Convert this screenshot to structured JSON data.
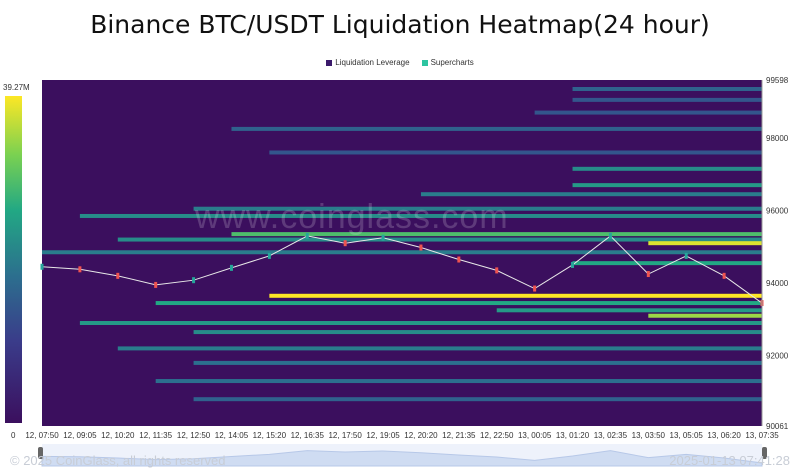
{
  "title": "Binance BTC/USDT Liquidation Heatmap(24 hour)",
  "legend": [
    {
      "label": "Liquidation Leverage",
      "color": "#3b1a6b"
    },
    {
      "label": "Supercharts",
      "color": "#2ec4a0"
    }
  ],
  "colorbar": {
    "max_label": "39.27M",
    "min_label": "0"
  },
  "watermark": "www.coinglass.com",
  "footer": {
    "copyright": "© 2025 CoinGlass, all rights reserved",
    "timestamp": "2025-01-13 07:41:28"
  },
  "colors": {
    "background": "#3b0f5e",
    "price_up": "#26a69a",
    "price_down": "#ef5350",
    "bright_band": "#fde725"
  },
  "chart_data": {
    "type": "heatmap",
    "title": "Binance BTC/USDT Liquidation Heatmap(24 hour)",
    "x_tick_labels": [
      "12, 07:50",
      "12, 09:05",
      "12, 10:20",
      "12, 11:35",
      "12, 12:50",
      "12, 14:05",
      "12, 15:20",
      "12, 16:35",
      "12, 17:50",
      "12, 19:05",
      "12, 20:20",
      "12, 21:35",
      "12, 22:50",
      "13, 00:05",
      "13, 01:20",
      "13, 02:35",
      "13, 03:50",
      "13, 05:05",
      "13, 06:20",
      "13, 07:35"
    ],
    "y_tick_labels": [
      "99598",
      "98000",
      "96000",
      "94000",
      "92000",
      "90061"
    ],
    "ylim": [
      90061,
      99598
    ],
    "price_series": [
      {
        "x": "12, 07:50",
        "y": 94450
      },
      {
        "x": "12, 09:05",
        "y": 94380
      },
      {
        "x": "12, 10:20",
        "y": 94200
      },
      {
        "x": "12, 11:35",
        "y": 93950
      },
      {
        "x": "12, 12:50",
        "y": 94080
      },
      {
        "x": "12, 14:05",
        "y": 94420
      },
      {
        "x": "12, 15:20",
        "y": 94750
      },
      {
        "x": "12, 16:35",
        "y": 95300
      },
      {
        "x": "12, 17:50",
        "y": 95100
      },
      {
        "x": "12, 19:05",
        "y": 95250
      },
      {
        "x": "12, 20:20",
        "y": 94980
      },
      {
        "x": "12, 21:35",
        "y": 94650
      },
      {
        "x": "12, 22:50",
        "y": 94350
      },
      {
        "x": "13, 00:05",
        "y": 93850
      },
      {
        "x": "13, 01:20",
        "y": 94500
      },
      {
        "x": "13, 02:35",
        "y": 95300
      },
      {
        "x": "13, 03:50",
        "y": 94250
      },
      {
        "x": "13, 05:05",
        "y": 94750
      },
      {
        "x": "13, 06:20",
        "y": 94200
      },
      {
        "x": "13, 07:35",
        "y": 93450
      }
    ],
    "liquidation_levels": [
      {
        "price": 99350,
        "start": "13, 01:20",
        "intensity": 0.35
      },
      {
        "price": 99050,
        "start": "13, 01:20",
        "intensity": 0.3
      },
      {
        "price": 98700,
        "start": "13, 00:05",
        "intensity": 0.3
      },
      {
        "price": 98250,
        "start": "12, 14:05",
        "intensity": 0.35
      },
      {
        "price": 97600,
        "start": "12, 15:20",
        "intensity": 0.3
      },
      {
        "price": 97150,
        "start": "13, 01:20",
        "intensity": 0.5
      },
      {
        "price": 96700,
        "start": "13, 01:20",
        "intensity": 0.55
      },
      {
        "price": 96450,
        "start": "12, 20:20",
        "intensity": 0.45
      },
      {
        "price": 96050,
        "start": "12, 12:50",
        "intensity": 0.45
      },
      {
        "price": 95850,
        "start": "12, 09:05",
        "intensity": 0.5
      },
      {
        "price": 95350,
        "start": "12, 14:05",
        "intensity": 0.7
      },
      {
        "price": 95200,
        "start": "12, 10:20",
        "intensity": 0.5
      },
      {
        "price": 95100,
        "start": "13, 03:50",
        "intensity": 0.95
      },
      {
        "price": 94850,
        "start": "12, 07:50",
        "intensity": 0.45
      },
      {
        "price": 94550,
        "start": "13, 01:20",
        "intensity": 0.6
      },
      {
        "price": 93650,
        "start": "12, 15:20",
        "intensity": 1.0
      },
      {
        "price": 93450,
        "start": "12, 11:35",
        "intensity": 0.6
      },
      {
        "price": 93250,
        "start": "12, 22:50",
        "intensity": 0.55
      },
      {
        "price": 93100,
        "start": "13, 03:50",
        "intensity": 0.85
      },
      {
        "price": 92900,
        "start": "12, 09:05",
        "intensity": 0.55
      },
      {
        "price": 92650,
        "start": "12, 12:50",
        "intensity": 0.5
      },
      {
        "price": 92200,
        "start": "12, 10:20",
        "intensity": 0.45
      },
      {
        "price": 91800,
        "start": "12, 12:50",
        "intensity": 0.4
      },
      {
        "price": 91300,
        "start": "12, 11:35",
        "intensity": 0.4
      },
      {
        "price": 90800,
        "start": "12, 12:50",
        "intensity": 0.35
      }
    ]
  }
}
